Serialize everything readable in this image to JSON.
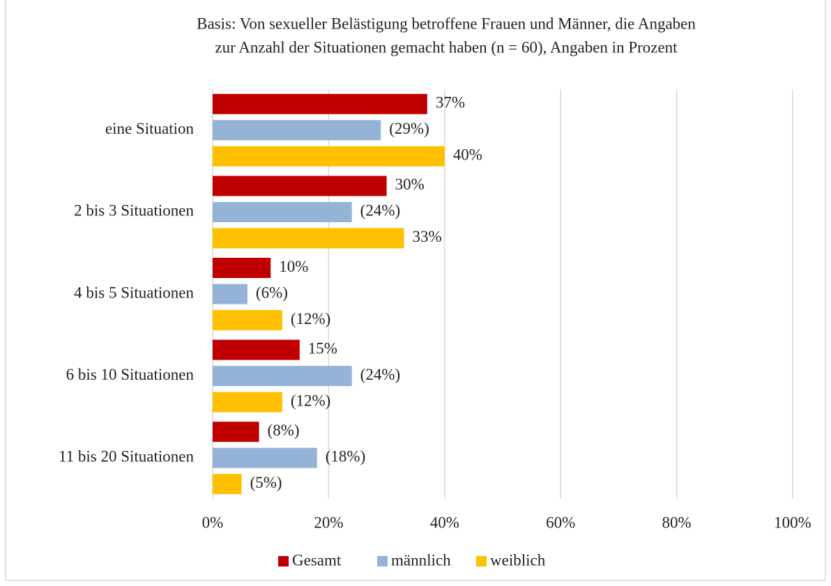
{
  "chart_data": {
    "type": "bar",
    "orientation": "horizontal",
    "title_lines": [
      "Basis: Von sexueller Belästigung betroffene Frauen und Männer, die Angaben",
      "zur Anzahl der Situationen gemacht haben (n = 60), Angaben in Prozent"
    ],
    "categories": [
      "eine Situation",
      "2 bis 3 Situationen",
      "4 bis 5 Situationen",
      "6 bis 10 Situationen",
      "11 bis 20 Situationen"
    ],
    "series": [
      {
        "name": "Gesamt",
        "color": "#c00000",
        "values": [
          37,
          30,
          10,
          15,
          8
        ],
        "value_labels": [
          "37%",
          "30%",
          "10%",
          "15%",
          "(8%)"
        ]
      },
      {
        "name": "männlich",
        "color": "#95b3d7",
        "values": [
          29,
          24,
          6,
          24,
          18
        ],
        "value_labels": [
          "(29%)",
          "(24%)",
          "(6%)",
          "(24%)",
          "(18%)"
        ]
      },
      {
        "name": "weiblich",
        "color": "#ffc000",
        "values": [
          40,
          33,
          12,
          12,
          5
        ],
        "value_labels": [
          "40%",
          "33%",
          "(12%)",
          "(12%)",
          "(5%)"
        ]
      }
    ],
    "xlim": [
      0,
      100
    ],
    "xticks": [
      {
        "value": 0,
        "label": "0%"
      },
      {
        "value": 20,
        "label": "20%"
      },
      {
        "value": 40,
        "label": "40%"
      },
      {
        "value": 60,
        "label": "60%"
      },
      {
        "value": 80,
        "label": "80%"
      },
      {
        "value": 100,
        "label": "100%"
      }
    ],
    "grid": true,
    "legend": "bottom"
  }
}
